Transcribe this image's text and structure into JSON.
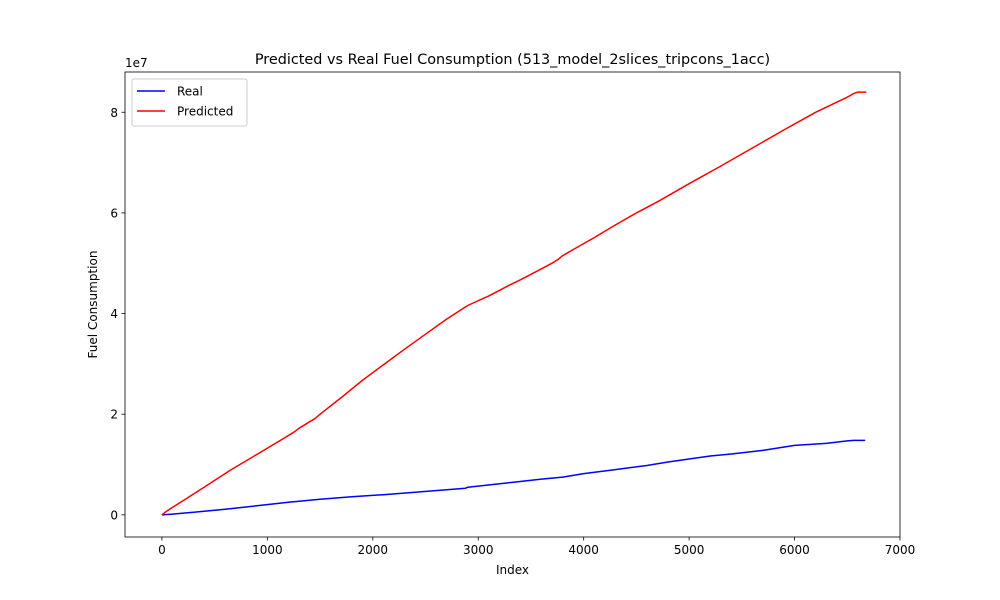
{
  "chart_data": {
    "type": "line",
    "title": "Predicted vs Real Fuel Consumption (513_model_2slices_tripcons_1acc)",
    "xlabel": "Index",
    "ylabel": "Fuel Consumption",
    "y_offset_label": "1e7",
    "xlim": [
      -350,
      7000
    ],
    "ylim": [
      -4400000,
      88000000
    ],
    "x_ticks": [
      0,
      1000,
      2000,
      3000,
      4000,
      5000,
      6000,
      7000
    ],
    "x_tick_labels": [
      "0",
      "1000",
      "2000",
      "3000",
      "4000",
      "5000",
      "6000",
      "7000"
    ],
    "y_ticks": [
      0,
      20000000,
      40000000,
      60000000,
      80000000
    ],
    "y_tick_labels": [
      "0",
      "2",
      "4",
      "6",
      "8"
    ],
    "grid": false,
    "legend_position": "top-left",
    "series": [
      {
        "name": "Real",
        "color": "#0000ff",
        "x": [
          0,
          100,
          300,
          600,
          900,
          1200,
          1500,
          1800,
          2100,
          2400,
          2700,
          2880,
          2900,
          3300,
          3600,
          3800,
          4000,
          4300,
          4600,
          4800,
          5000,
          5200,
          5400,
          5700,
          6000,
          6300,
          6500,
          6560,
          6670
        ],
        "y": [
          0,
          150000,
          500000,
          1100000,
          1800000,
          2500000,
          3100000,
          3600000,
          4000000,
          4500000,
          5000000,
          5300000,
          5500000,
          6400000,
          7100000,
          7500000,
          8200000,
          9000000,
          9800000,
          10500000,
          11100000,
          11700000,
          12100000,
          12800000,
          13800000,
          14200000,
          14700000,
          14800000,
          14800000
        ]
      },
      {
        "name": "Predicted",
        "color": "#ff0000",
        "x": [
          0,
          30,
          80,
          200,
          400,
          650,
          900,
          1100,
          1250,
          1300,
          1400,
          1450,
          1500,
          1700,
          1900,
          2100,
          2300,
          2500,
          2700,
          2900,
          3100,
          3300,
          3400,
          3500,
          3600,
          3700,
          3760,
          3800,
          3900,
          4100,
          4300,
          4500,
          4700,
          5000,
          5300,
          5600,
          5900,
          6200,
          6500,
          6560,
          6600,
          6680
        ],
        "y": [
          0,
          500000,
          1200000,
          2800000,
          5500000,
          8900000,
          12000000,
          14500000,
          16400000,
          17200000,
          18500000,
          19100000,
          20000000,
          23300000,
          26700000,
          29800000,
          32900000,
          35900000,
          38900000,
          41600000,
          43500000,
          45700000,
          46700000,
          47800000,
          48900000,
          50000000,
          50800000,
          51500000,
          52700000,
          55100000,
          57600000,
          60000000,
          62200000,
          65800000,
          69300000,
          72900000,
          76500000,
          80000000,
          83000000,
          83700000,
          84000000,
          84000000
        ]
      }
    ]
  }
}
